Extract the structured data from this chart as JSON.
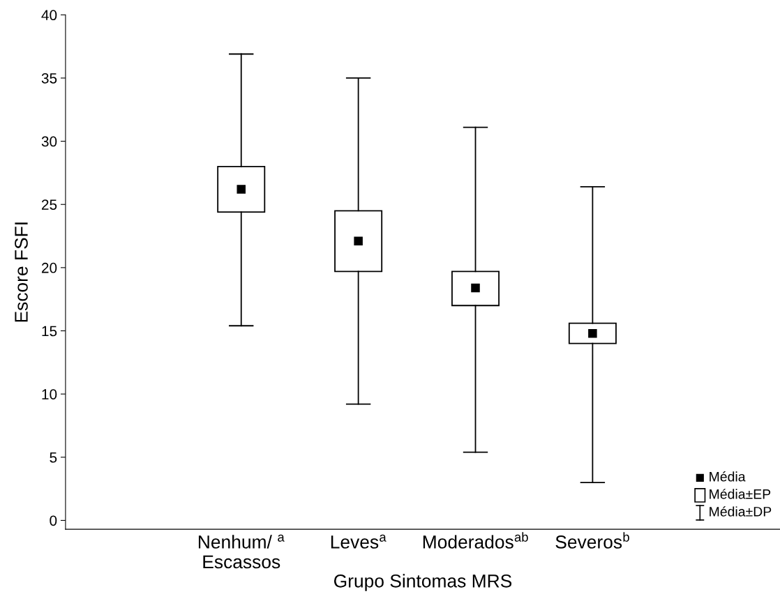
{
  "chart_data": {
    "type": "box",
    "xlabel": "Grupo Sintomas MRS",
    "ylabel": "Escore FSFI",
    "categories": [
      "Nenhum/ $^{a}$\nEscassos",
      "Leves$^{a}$",
      "Moderados$^{ab}$",
      "Severos$^{b}$"
    ],
    "boxes": [
      {
        "low": 15.4,
        "q1": 24.4,
        "mean": 26.2,
        "q3": 28.0,
        "high": 36.9
      },
      {
        "low": 9.2,
        "q1": 19.7,
        "mean": 22.1,
        "q3": 24.5,
        "high": 35.0
      },
      {
        "low": 5.4,
        "q1": 17.0,
        "mean": 18.4,
        "q3": 19.7,
        "high": 31.1
      },
      {
        "low": 3.0,
        "q1": 14.0,
        "mean": 14.8,
        "q3": 15.6,
        "high": 26.4
      }
    ],
    "color": "#000000",
    "ylim": [
      -0.7,
      40
    ],
    "yticks": [
      0,
      5,
      10,
      15,
      20,
      25,
      30,
      35,
      40
    ],
    "annotations": [
      "Média",
      "Média±EP",
      "Média±DP"
    ],
    "grid": false,
    "marker": "square"
  }
}
